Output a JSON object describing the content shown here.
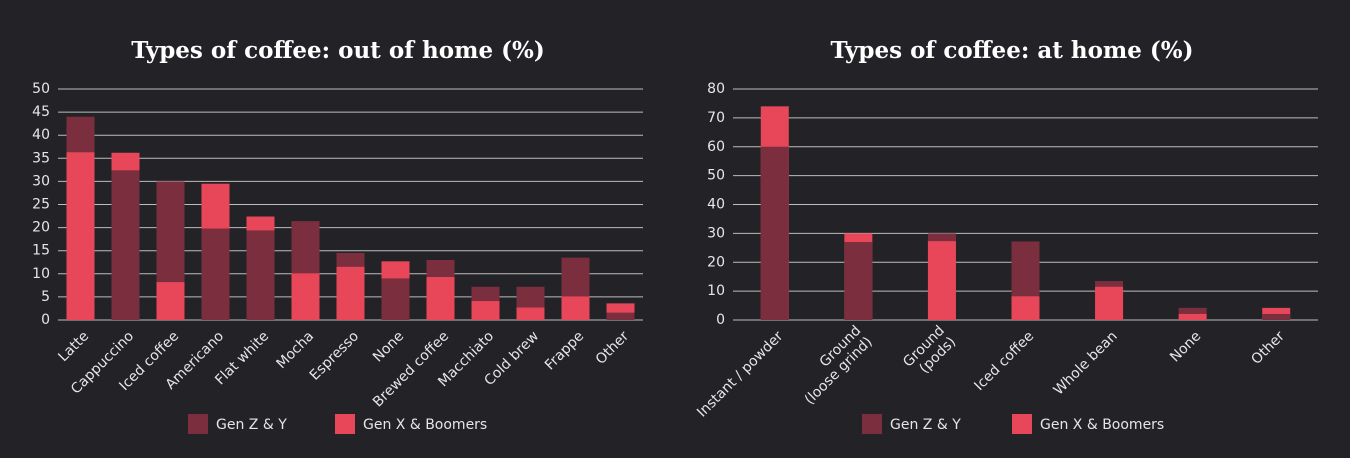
{
  "chart_data": [
    {
      "type": "bar",
      "title": "Types of coffee: out of home (%)",
      "categories": [
        "Latte",
        "Cappuccino",
        "Iced coffee",
        "Americano",
        "Flat white",
        "Mocha",
        "Espresso",
        "None",
        "Brewed coffee",
        "Macchiato",
        "Cold brew",
        "Frappe",
        "Other"
      ],
      "series": [
        {
          "name": "Gen Z & Y",
          "color": "#7b2f3e",
          "values": [
            44,
            32.4,
            30,
            19.8,
            19.4,
            21.4,
            14.5,
            9,
            13,
            7.2,
            7.2,
            13.5,
            1.6
          ]
        },
        {
          "name": "Gen X & Boomers",
          "color": "#e8475a",
          "values": [
            36.3,
            36.2,
            8.2,
            29.5,
            22.4,
            10.1,
            11.5,
            12.7,
            9.3,
            4.1,
            2.7,
            5.1,
            3.6
          ]
        }
      ],
      "ylim": [
        0,
        50
      ],
      "yticks": [
        0,
        5,
        10,
        15,
        20,
        25,
        30,
        35,
        40,
        45,
        50
      ],
      "grid": true
    },
    {
      "type": "bar",
      "title": "Types of coffee: at home (%)",
      "categories": [
        "Instant / powder",
        "Ground\n(loose grind)",
        "Ground\n(pods)",
        "Iced coffee",
        "Whole bean",
        "None",
        "Other"
      ],
      "series": [
        {
          "name": "Gen Z & Y",
          "color": "#7b2f3e",
          "values": [
            60,
            27,
            30,
            27.2,
            13.5,
            4.2,
            2.1
          ]
        },
        {
          "name": "Gen X & Boomers",
          "color": "#e8475a",
          "values": [
            74,
            30,
            27.3,
            8.2,
            11.5,
            2.1,
            4.2
          ]
        }
      ],
      "ylim": [
        0,
        80
      ],
      "yticks": [
        0,
        10,
        20,
        30,
        40,
        50,
        60,
        70,
        80
      ],
      "grid": true
    }
  ]
}
